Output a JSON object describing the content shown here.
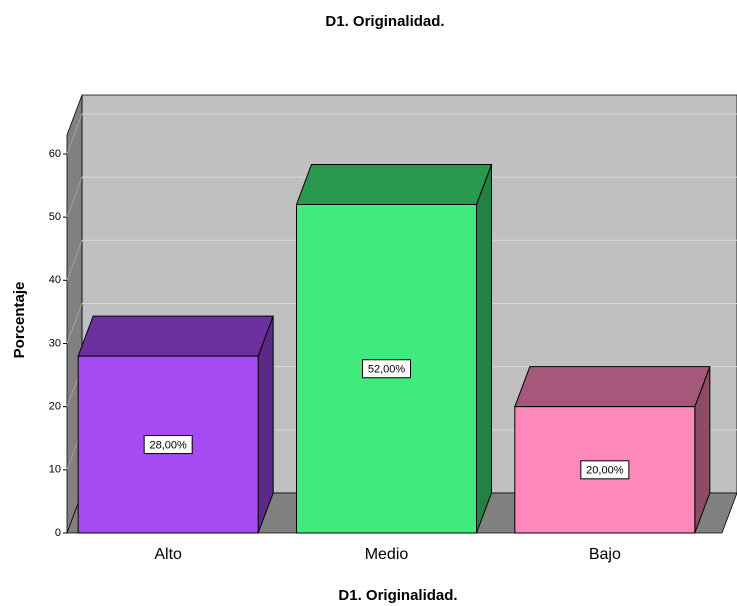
{
  "chart_data": {
    "type": "bar3d",
    "title": "D1. Originalidad.",
    "x_label": "D1. Originalidad.",
    "y_label": "Porcentaje",
    "categories": [
      "Alto",
      "Medio",
      "Bajo"
    ],
    "values": [
      28,
      52,
      20
    ],
    "value_labels": [
      "28,00%",
      "52,00%",
      "20,00%"
    ],
    "colors": [
      "#a64bf4",
      "#40eb7b",
      "#ff88bb"
    ],
    "ylim": [
      0,
      63
    ],
    "yticks": [
      0,
      10,
      20,
      30,
      40,
      50,
      60
    ],
    "grid": true
  }
}
